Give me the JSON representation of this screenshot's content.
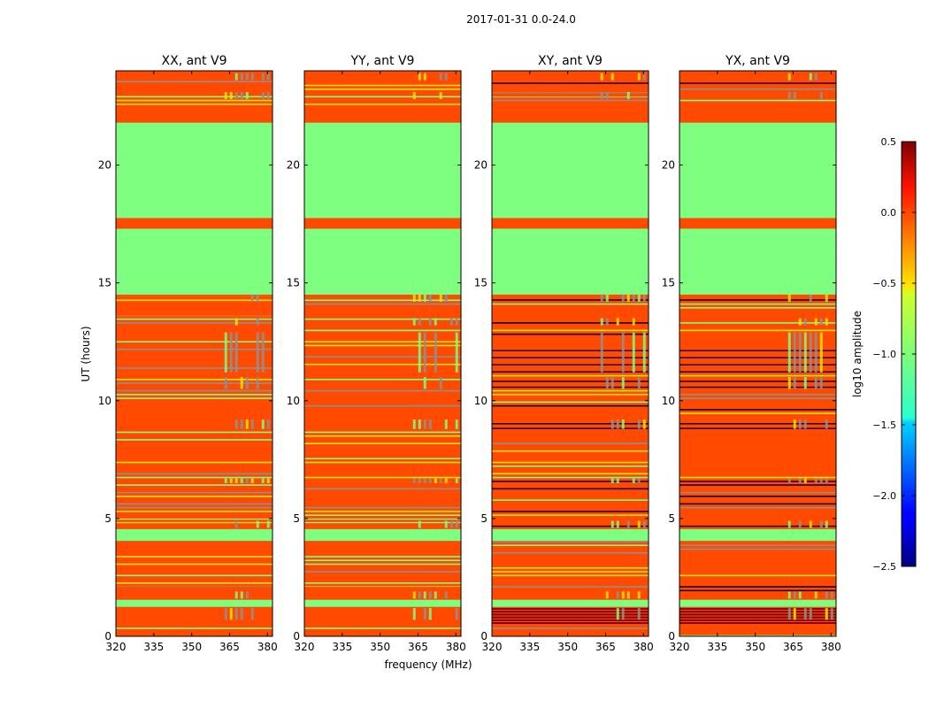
{
  "chart_data": {
    "type": "heatmap",
    "suptitle": "2017-01-31 0.0-24.0",
    "xlabel": "frequency (MHz)",
    "ylabel": "UT (hours)",
    "xlim": [
      320,
      382
    ],
    "ylim": [
      0,
      24
    ],
    "xticks": [
      "320",
      "335",
      "350",
      "365",
      "380"
    ],
    "yticks": [
      "0",
      "5",
      "10",
      "15",
      "20"
    ],
    "panels": [
      {
        "title": "XX, ant V9",
        "flag_bands": [
          [
            21.8,
            22.5
          ],
          [
            17.5,
            17.7
          ],
          [
            17.3,
            17.45
          ],
          [
            14.3,
            14.45
          ],
          [
            13.6,
            13.85
          ],
          [
            12.6,
            12.9
          ],
          [
            10.95,
            11.3
          ],
          [
            9.1,
            9.3
          ],
          [
            7.9,
            8.1
          ],
          [
            6.55,
            6.7
          ],
          [
            5.0,
            5.1
          ],
          [
            4.6,
            4.8
          ],
          [
            3.8,
            3.95
          ],
          [
            1.6,
            2.1
          ],
          [
            0.7,
            1.2
          ]
        ]
      },
      {
        "title": "YY, ant V9",
        "flag_bands": [
          [
            21.8,
            22.5
          ],
          [
            17.5,
            17.7
          ],
          [
            17.3,
            17.45
          ],
          [
            14.3,
            14.45
          ],
          [
            13.6,
            13.85
          ],
          [
            12.6,
            12.9
          ],
          [
            10.95,
            11.3
          ],
          [
            9.1,
            9.3
          ],
          [
            7.9,
            8.1
          ],
          [
            6.55,
            6.7
          ],
          [
            5.0,
            5.1
          ],
          [
            4.6,
            4.8
          ],
          [
            3.8,
            3.95
          ],
          [
            1.6,
            2.1
          ],
          [
            0.7,
            1.2
          ]
        ]
      },
      {
        "title": "XY, ant V9",
        "flag_bands": [
          [
            23.3,
            23.8
          ],
          [
            22.9,
            23.05
          ],
          [
            21.8,
            22.5
          ],
          [
            17.5,
            17.7
          ],
          [
            14.2,
            14.5
          ],
          [
            13.6,
            13.85
          ],
          [
            11.2,
            12.6
          ],
          [
            10.5,
            11.0
          ],
          [
            8.7,
            9.3
          ],
          [
            6.5,
            6.7
          ],
          [
            4.6,
            4.9
          ],
          [
            1.6,
            1.9
          ],
          [
            0.7,
            1.2
          ]
        ]
      },
      {
        "title": "YX, ant V9",
        "flag_bands": [
          [
            23.3,
            23.8
          ],
          [
            22.9,
            23.05
          ],
          [
            21.8,
            22.5
          ],
          [
            17.5,
            17.7
          ],
          [
            14.2,
            14.5
          ],
          [
            13.6,
            13.85
          ],
          [
            11.2,
            12.6
          ],
          [
            10.5,
            11.0
          ],
          [
            8.7,
            9.3
          ],
          [
            6.5,
            6.7
          ],
          [
            4.6,
            4.9
          ],
          [
            1.6,
            1.9
          ],
          [
            0.7,
            1.2
          ]
        ]
      }
    ],
    "good_bands": [
      [
        17.75,
        21.8
      ],
      [
        14.5,
        17.3
      ],
      [
        4.05,
        4.55
      ],
      [
        1.25,
        1.55
      ]
    ],
    "colorbar": {
      "label": "log10 amplitude",
      "range": [
        -2.5,
        0.5
      ],
      "ticks": [
        "0.5",
        "0.0",
        "−0.5",
        "−1.0",
        "−1.5",
        "−2.0",
        "−2.5"
      ],
      "tick_values": [
        0.5,
        0.0,
        -0.5,
        -1.0,
        -1.5,
        -2.0,
        -2.5
      ]
    },
    "colors": {
      "flagged": "#ff4a00",
      "good": "#7fff7f",
      "stripe_yellow": "#e8e800",
      "stripe_gray": "#909090",
      "stripe_dark": "#1a0040",
      "stripe_maroon": "#800000"
    }
  }
}
